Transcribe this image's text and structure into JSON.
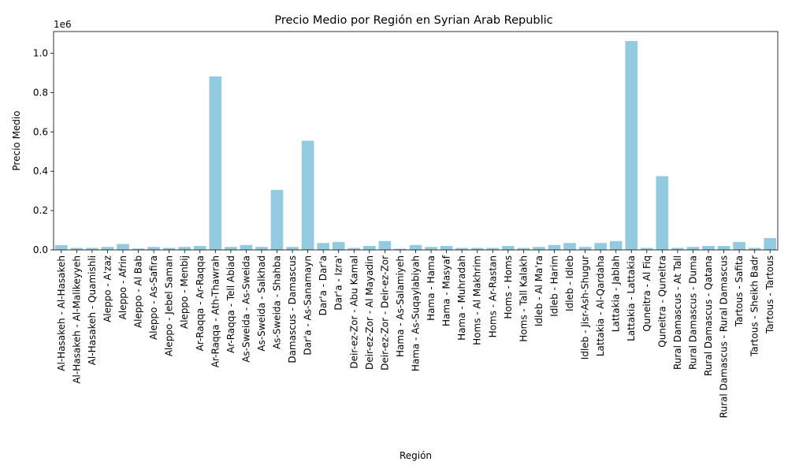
{
  "chart_data": {
    "type": "bar",
    "title": "Precio Medio por Región en Syrian Arab Republic",
    "xlabel": "Región",
    "ylabel": "Precio Medio",
    "y_offset_label": "1e6",
    "ylim": [
      0,
      1.11
    ],
    "yticks": [
      0.0,
      0.2,
      0.4,
      0.6,
      0.8,
      1.0
    ],
    "ytick_labels": [
      "0.0",
      "0.2",
      "0.4",
      "0.6",
      "0.8",
      "1.0"
    ],
    "grid": false,
    "bar_color": "#92cbe0",
    "categories": [
      "Al-Hasakeh - Al-Hasakeh",
      "Al-Hasakeh - Al-Malikeyyeh",
      "Al-Hasakeh - Quamishli",
      "Aleppo - A'zaz",
      "Aleppo - Afrin",
      "Aleppo - Al Bab",
      "Aleppo - As-Safira",
      "Aleppo - Jebel Saman",
      "Aleppo - Menbij",
      "Ar-Raqqa - Ar-Raqqa",
      "Ar-Raqqa - Ath-Thawrah",
      "Ar-Raqqa - Tell Abiad",
      "As-Sweida - As-Sweida",
      "As-Sweida - Salkhad",
      "As-Sweida - Shahba",
      "Damascus - Damascus",
      "Dar'a - As-Sanamayn",
      "Dar'a - Dar'a",
      "Dar'a - Izra'",
      "Deir-ez-Zor - Abu Kamal",
      "Deir-ez-Zor - Al Mayadin",
      "Deir-ez-Zor - Deir-ez-Zor",
      "Hama - As-Salamiyeh",
      "Hama - As-Suqaylabiyah",
      "Hama - Hama",
      "Hama - Masyaf",
      "Hama - Muhradah",
      "Homs - Al Makhrim",
      "Homs - Ar-Rastan",
      "Homs - Homs",
      "Homs - Tall Kalakh",
      "Idleb - Al Ma'ra",
      "Idleb - Harim",
      "Idleb - Idleb",
      "Idleb - Jisr-Ash-Shugur",
      "Lattakia - Al-Qardaha",
      "Lattakia - Jablah",
      "Lattakia - Lattakia",
      "Quneitra - Al Fiq",
      "Quneitra - Quneitra",
      "Rural Damascus - At Tall",
      "Rural Damascus - Duma",
      "Rural Damascus - Qatana",
      "Rural Damascus - Rural Damascus",
      "Tartous - Safita",
      "Tartous - Sheikh Badr",
      "Tartous - Tartous"
    ],
    "values": [
      0.024,
      0.01,
      0.01,
      0.015,
      0.03,
      0.007,
      0.015,
      0.01,
      0.015,
      0.02,
      0.882,
      0.015,
      0.025,
      0.015,
      0.305,
      0.015,
      0.555,
      0.035,
      0.04,
      0.01,
      0.02,
      0.045,
      0.006,
      0.025,
      0.015,
      0.02,
      0.01,
      0.01,
      0.01,
      0.02,
      0.01,
      0.015,
      0.025,
      0.035,
      0.015,
      0.035,
      0.045,
      1.062,
      0.01,
      0.375,
      0.01,
      0.015,
      0.02,
      0.02,
      0.04,
      0.01,
      0.06
    ]
  }
}
